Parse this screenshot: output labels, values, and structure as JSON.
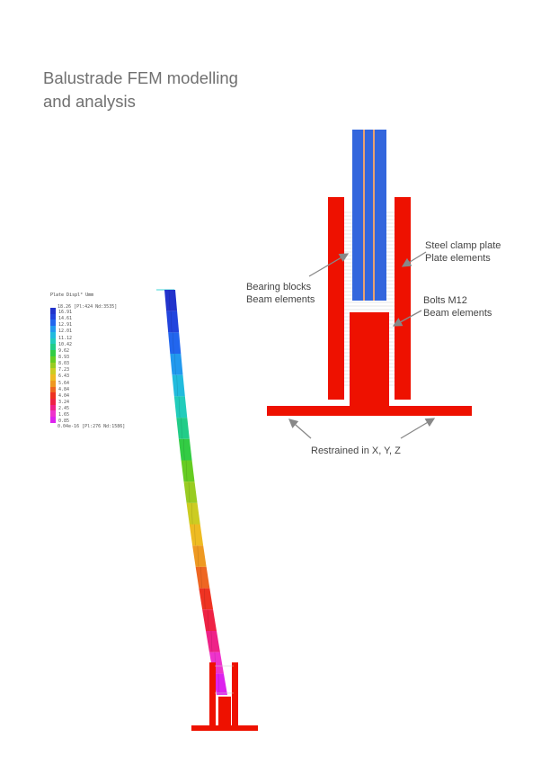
{
  "page": {
    "title_line1": "Balustrade FEM modelling",
    "title_line2": "and analysis"
  },
  "legend": {
    "header": "Plate Displ° Umm",
    "max_line": "18.26 [Pl:424 Nd:3535]",
    "min_line": "0.04e-16 [Pl:276 Nd:1586]",
    "ticks": [
      "16.91",
      "14.61",
      "12.91",
      "12.01",
      "11.12",
      "10.42",
      "9.62",
      "8.93",
      "8.03",
      "7.23",
      "6.43",
      "5.64",
      "4.84",
      "4.04",
      "3.24",
      "2.45",
      "1.65",
      "0.85"
    ],
    "colors": [
      "#2233cc",
      "#2244dd",
      "#2266ee",
      "#2299ee",
      "#22bbdd",
      "#22ccbb",
      "#22cc88",
      "#33cc44",
      "#66cc22",
      "#99cc22",
      "#cccc22",
      "#eebb22",
      "#ee9922",
      "#ee6622",
      "#ee3322",
      "#ee2244",
      "#ee2288",
      "#ee33cc",
      "#dd22ee"
    ]
  },
  "annotations": {
    "steel_clamp_line1": "Steel clamp plate",
    "steel_clamp_line2": "Plate elements",
    "bearing_line1": "Bearing blocks",
    "bearing_line2": "Beam elements",
    "bolts_line1": "Bolts M12",
    "bolts_line2": "Beam elements",
    "restrained": "Restrained in X, Y, Z"
  },
  "colors": {
    "clamp": "#ee1100",
    "glass": "#3366dd",
    "bolt_line": "#e8a070",
    "arrow": "#888888",
    "title": "#707070"
  }
}
